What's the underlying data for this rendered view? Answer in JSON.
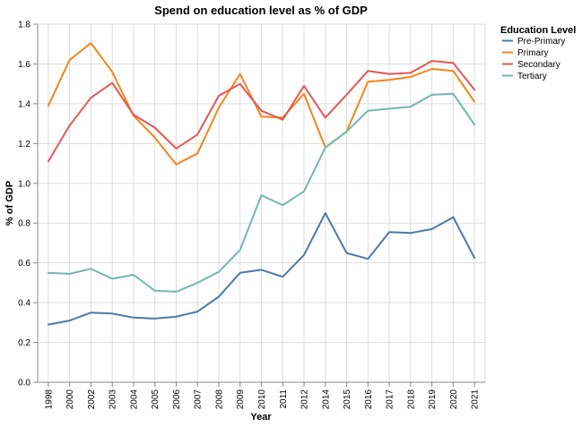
{
  "chart_data": {
    "type": "line",
    "title": "Spend on education level as % of GDP",
    "xlabel": "Year",
    "ylabel": "% of GDP",
    "ylim": [
      0,
      1.8
    ],
    "y_ticks": [
      "0.0",
      "0.2",
      "0.4",
      "0.6",
      "0.8",
      "1.0",
      "1.2",
      "1.4",
      "1.6",
      "1.8"
    ],
    "y_tick_values": [
      0,
      0.2,
      0.4,
      0.6,
      0.8,
      1.0,
      1.2,
      1.4,
      1.6,
      1.8
    ],
    "grid": true,
    "legend_title": "Education Level",
    "legend_position": "right",
    "categories": [
      "1998",
      "2000",
      "2002",
      "2003",
      "2004",
      "2005",
      "2006",
      "2007",
      "2008",
      "2009",
      "2010",
      "2011",
      "2012",
      "2014",
      "2015",
      "2016",
      "2017",
      "2018",
      "2019",
      "2020",
      "2021"
    ],
    "series": [
      {
        "name": "Pre-Primary",
        "color": "#4c78a8",
        "values": [
          0.29,
          0.31,
          0.35,
          0.345,
          0.325,
          0.32,
          0.33,
          0.355,
          0.43,
          0.55,
          0.565,
          0.53,
          0.64,
          0.85,
          0.65,
          0.62,
          0.755,
          0.75,
          0.77,
          0.83,
          0.625
        ]
      },
      {
        "name": "Primary",
        "color": "#f58518",
        "values": [
          1.39,
          1.62,
          1.705,
          1.56,
          1.34,
          1.23,
          1.095,
          1.15,
          1.38,
          1.55,
          1.335,
          1.33,
          1.45,
          1.18,
          1.26,
          1.51,
          1.52,
          1.535,
          1.575,
          1.565,
          1.41
        ]
      },
      {
        "name": "Secondary",
        "color": "#e45756",
        "values": [
          1.11,
          1.29,
          1.43,
          1.505,
          1.345,
          1.28,
          1.175,
          1.245,
          1.44,
          1.5,
          1.365,
          1.32,
          1.49,
          1.33,
          1.445,
          1.565,
          1.55,
          1.555,
          1.615,
          1.605,
          1.47
        ]
      },
      {
        "name": "Tertiary",
        "color": "#72b7b2",
        "values": [
          0.55,
          0.545,
          0.57,
          0.52,
          0.54,
          0.46,
          0.455,
          0.5,
          0.555,
          0.665,
          0.94,
          0.89,
          0.96,
          1.18,
          1.26,
          1.365,
          1.375,
          1.385,
          1.445,
          1.45,
          1.295
        ]
      }
    ]
  }
}
